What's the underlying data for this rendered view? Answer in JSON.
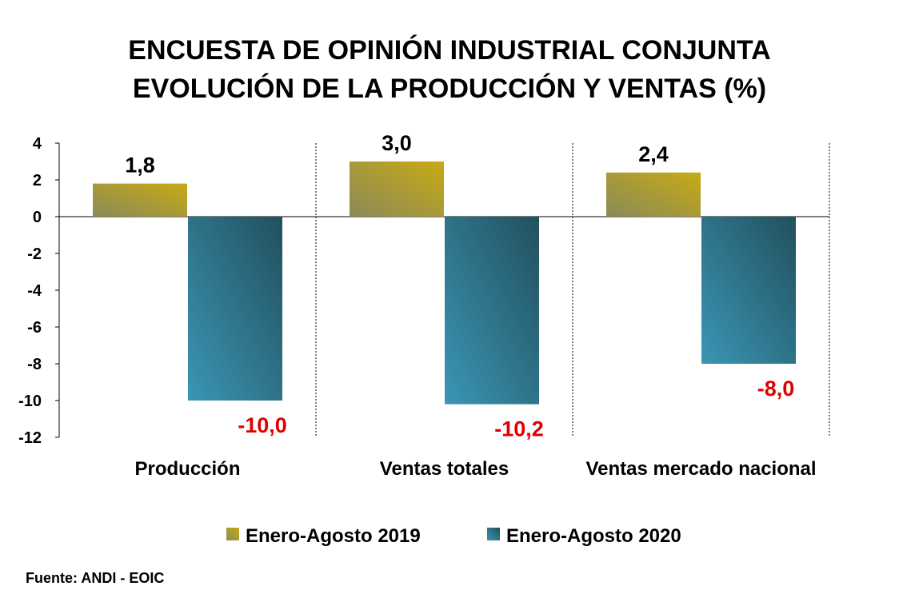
{
  "title_lines": [
    "ENCUESTA DE OPINIÓN INDUSTRIAL CONJUNTA",
    "EVOLUCIÓN DE LA PRODUCCIÓN Y VENTAS (%)"
  ],
  "source": "Fuente: ANDI - EOIC",
  "colors": {
    "series_2019_light": "#8a8a5a",
    "series_2019_dark": "#c8aa14",
    "series_2020_light": "#3a96b4",
    "series_2020_dark": "#22505e",
    "negative_label": "#e00000",
    "positive_label": "#000000"
  },
  "chart_data": {
    "type": "bar",
    "title": "ENCUESTA DE OPINIÓN INDUSTRIAL CONJUNTA EVOLUCIÓN DE LA PRODUCCIÓN Y VENTAS (%)",
    "categories": [
      "Producción",
      "Ventas totales",
      "Ventas mercado nacional"
    ],
    "series": [
      {
        "name": "Enero-Agosto 2019",
        "values": [
          1.8,
          3.0,
          2.4
        ],
        "labels": [
          "1,8",
          "3,0",
          "2,4"
        ]
      },
      {
        "name": "Enero-Agosto 2020",
        "values": [
          -10.0,
          -10.2,
          -8.0
        ],
        "labels": [
          "-10,0",
          "-10,2",
          "-8,0"
        ]
      }
    ],
    "yticks": [
      4,
      2,
      0,
      -2,
      -4,
      -6,
      -8,
      -10,
      -12
    ],
    "ytick_labels": [
      "4",
      "2",
      "0",
      "-2",
      "-4",
      "-6",
      "-8",
      "-10",
      "-12"
    ],
    "ylim": [
      -12,
      4
    ],
    "xlabel": "",
    "ylabel": "",
    "grid": false,
    "category_separators": "dashed",
    "legend_position": "bottom"
  }
}
